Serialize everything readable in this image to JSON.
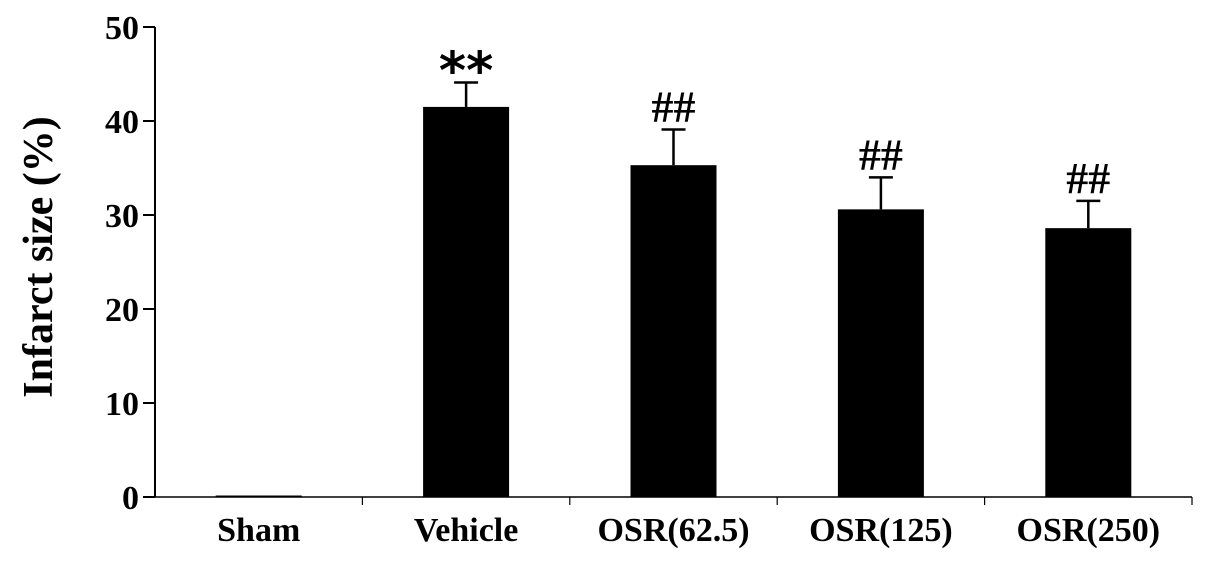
{
  "chart_data": {
    "type": "bar",
    "ylabel": "Infarct size (%)",
    "xlabel": "",
    "ylim": [
      0,
      50
    ],
    "yticks": [
      "0",
      "10",
      "20",
      "30",
      "40",
      "50"
    ],
    "categories": [
      "Sham",
      "Vehicle",
      "OSR(62.5)",
      "OSR(125)",
      "OSR(250)"
    ],
    "values": [
      0,
      41.5,
      35.3,
      30.6,
      28.6
    ],
    "errors": [
      0,
      2.6,
      3.8,
      3.4,
      2.9
    ],
    "annotations": [
      "",
      "**",
      "##",
      "##",
      "##"
    ],
    "grid": false,
    "bar_color": "#000000"
  }
}
